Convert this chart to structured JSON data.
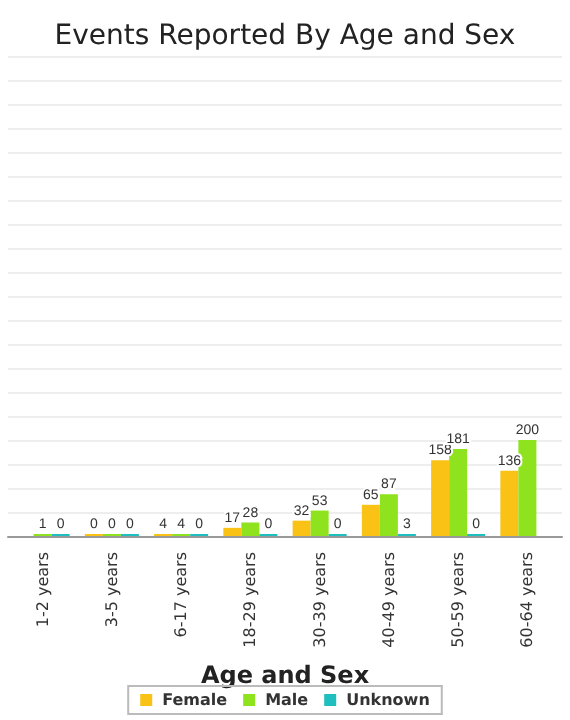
{
  "chart_data": {
    "type": "bar",
    "title": "Events Reported By Age and Sex",
    "xlabel": "Age and Sex",
    "categories": [
      "1-2 years",
      "3-5 years",
      "6-17 years",
      "18-29 years",
      "30-39 years",
      "40-49 years",
      "50-59 years",
      "60-64 years"
    ],
    "series": [
      {
        "name": "Female",
        "color": "#f9c215",
        "values": [
          null,
          0,
          4,
          17,
          32,
          65,
          158,
          136
        ]
      },
      {
        "name": "Male",
        "color": "#8ee21e",
        "values": [
          1,
          0,
          4,
          28,
          53,
          87,
          181,
          200
        ]
      },
      {
        "name": "Unknown",
        "color": "#1fbfbf",
        "values": [
          0,
          0,
          0,
          0,
          0,
          3,
          0,
          null
        ]
      }
    ],
    "ylim": [
      0,
      1000
    ],
    "yticks": [
      {
        "value": 0,
        "label": null
      },
      {
        "value": 50,
        "label": null
      },
      {
        "value": 100,
        "label": null
      },
      {
        "value": 150,
        "label": null
      },
      {
        "value": 200,
        "label": null
      },
      {
        "value": 250,
        "label": null
      },
      {
        "value": 300,
        "label": null
      },
      {
        "value": 350,
        "label": null
      },
      {
        "value": 400,
        "label": null
      },
      {
        "value": 450,
        "label": null
      },
      {
        "value": 500,
        "label": null
      },
      {
        "value": 550,
        "label": null
      },
      {
        "value": 600,
        "label": null
      },
      {
        "value": 650,
        "label": null
      },
      {
        "value": 700,
        "label": null
      },
      {
        "value": 750,
        "label": null
      },
      {
        "value": 800,
        "label": null
      },
      {
        "value": 850,
        "label": null
      },
      {
        "value": 900,
        "label": null
      },
      {
        "value": 950,
        "label": null
      },
      {
        "value": 1000,
        "label": null
      }
    ],
    "tick_labels": "x",
    "grid": "y",
    "legend": "bottom",
    "data_labels": true
  }
}
